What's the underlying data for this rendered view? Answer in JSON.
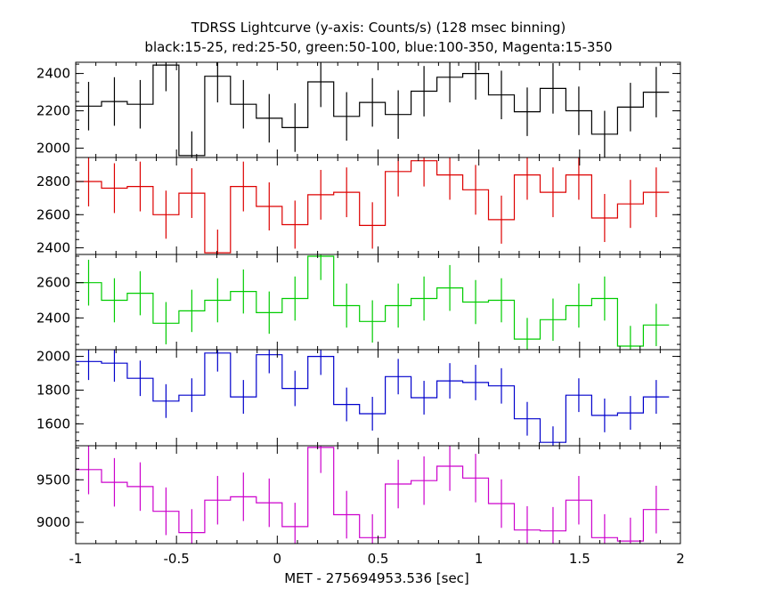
{
  "title": "TDRSS Lightcurve (y-axis: Counts/s) (128 msec binning)",
  "subtitle": "black:15-25, red:25-50, green:50-100, blue:100-350, Magenta:15-350",
  "xlabel": "MET - 275694953.536 [sec]",
  "chart_data": {
    "type": "line",
    "step": true,
    "xlim": [
      -1,
      2
    ],
    "x_ticks": [
      "-1",
      "-0.5",
      "0",
      "0.5",
      "1",
      "1.5",
      "2"
    ],
    "x_tick_values": [
      -1,
      -0.5,
      0,
      0.5,
      1,
      1.5,
      2
    ],
    "x": [
      -0.936,
      -0.808,
      -0.68,
      -0.552,
      -0.424,
      -0.296,
      -0.168,
      -0.04,
      0.088,
      0.216,
      0.344,
      0.472,
      0.6,
      0.728,
      0.856,
      0.984,
      1.112,
      1.24,
      1.368,
      1.496,
      1.624,
      1.752,
      1.88
    ],
    "bin_width": 0.128,
    "panels": [
      {
        "name": "black:15-25",
        "color": "#000000",
        "ylim": [
          1950,
          2460
        ],
        "y_ticks": [
          "2400",
          "2200",
          "2000"
        ],
        "y_tick_values": [
          2400,
          2200,
          2000
        ],
        "values": [
          2225,
          2250,
          2235,
          2445,
          1960,
          2385,
          2235,
          2160,
          2110,
          2355,
          2170,
          2245,
          2180,
          2305,
          2380,
          2400,
          2285,
          2195,
          2320,
          2200,
          2075,
          2220,
          2300
        ],
        "errors": [
          130,
          130,
          130,
          140,
          130,
          140,
          130,
          130,
          130,
          135,
          130,
          130,
          130,
          135,
          135,
          140,
          130,
          130,
          135,
          130,
          125,
          130,
          135
        ]
      },
      {
        "name": "red:25-50",
        "color": "#dd0000",
        "ylim": [
          2360,
          2945
        ],
        "y_ticks": [
          "2800",
          "2600",
          "2400"
        ],
        "y_tick_values": [
          2800,
          2600,
          2400
        ],
        "values": [
          2800,
          2760,
          2770,
          2600,
          2730,
          2370,
          2770,
          2650,
          2540,
          2720,
          2735,
          2535,
          2860,
          2925,
          2840,
          2750,
          2570,
          2840,
          2735,
          2840,
          2580,
          2665,
          2735
        ],
        "errors": [
          150,
          150,
          150,
          145,
          150,
          140,
          150,
          145,
          145,
          150,
          150,
          140,
          150,
          155,
          150,
          150,
          145,
          150,
          150,
          150,
          145,
          145,
          150
        ]
      },
      {
        "name": "green:50-100",
        "color": "#00cc00",
        "ylim": [
          2220,
          2760
        ],
        "y_ticks": [
          "2600",
          "2400"
        ],
        "y_tick_values": [
          2600,
          2400
        ],
        "values": [
          2600,
          2500,
          2540,
          2370,
          2440,
          2500,
          2550,
          2430,
          2510,
          2750,
          2470,
          2380,
          2470,
          2510,
          2570,
          2490,
          2500,
          2280,
          2390,
          2470,
          2510,
          2240,
          2360
        ],
        "errors": [
          130,
          125,
          125,
          120,
          120,
          125,
          125,
          120,
          125,
          135,
          125,
          120,
          125,
          125,
          130,
          125,
          125,
          120,
          120,
          125,
          125,
          115,
          120
        ]
      },
      {
        "name": "blue:100-350",
        "color": "#0000cc",
        "ylim": [
          1470,
          2040
        ],
        "y_ticks": [
          "2000",
          "1800",
          "1600"
        ],
        "y_tick_values": [
          2000,
          1800,
          1600
        ],
        "values": [
          1970,
          1960,
          1870,
          1735,
          1770,
          2020,
          1760,
          2010,
          1810,
          2000,
          1715,
          1660,
          1880,
          1755,
          1855,
          1845,
          1825,
          1630,
          1490,
          1770,
          1650,
          1665,
          1760
        ],
        "errors": [
          110,
          110,
          105,
          100,
          100,
          110,
          100,
          110,
          105,
          110,
          100,
          100,
          105,
          100,
          105,
          105,
          105,
          100,
          95,
          100,
          100,
          100,
          100
        ]
      },
      {
        "name": "Magenta:15-350",
        "color": "#cc00cc",
        "ylim": [
          8750,
          9900
        ],
        "y_ticks": [
          "9500",
          "9000"
        ],
        "y_tick_values": [
          9500,
          9000
        ],
        "values": [
          9620,
          9470,
          9420,
          9130,
          8880,
          9260,
          9300,
          9230,
          8950,
          9880,
          9090,
          8820,
          9450,
          9490,
          9660,
          9520,
          9220,
          8910,
          8900,
          9260,
          8820,
          8780,
          9150
        ],
        "errors": [
          290,
          285,
          285,
          280,
          275,
          285,
          285,
          285,
          280,
          300,
          280,
          275,
          285,
          285,
          290,
          285,
          285,
          280,
          280,
          285,
          275,
          275,
          280
        ]
      }
    ]
  }
}
